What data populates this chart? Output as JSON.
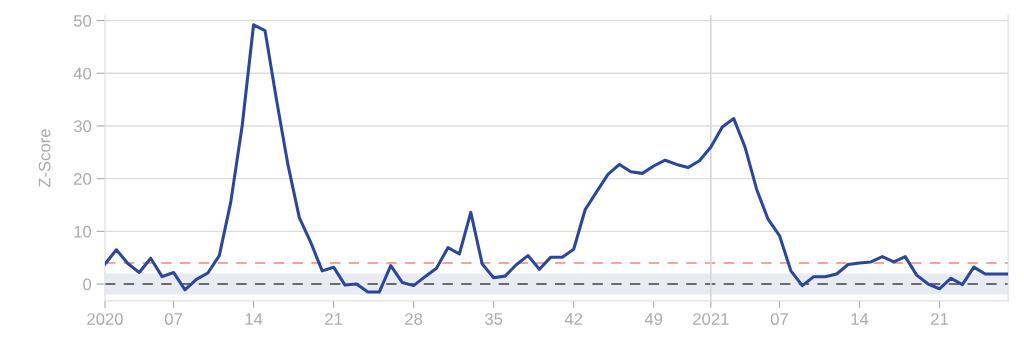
{
  "chart_data": {
    "type": "line",
    "ylabel": "Z-Score",
    "categories": [
      "2020",
      null,
      null,
      null,
      null,
      null,
      "07",
      null,
      null,
      null,
      null,
      null,
      null,
      "14",
      null,
      null,
      null,
      null,
      null,
      null,
      "21",
      null,
      null,
      null,
      null,
      null,
      null,
      "28",
      null,
      null,
      null,
      null,
      null,
      null,
      "35",
      null,
      null,
      null,
      null,
      null,
      null,
      "42",
      null,
      null,
      null,
      null,
      null,
      null,
      "49",
      null,
      null,
      null,
      null,
      "2021",
      null,
      null,
      null,
      null,
      null,
      "07",
      null,
      null,
      null,
      null,
      null,
      null,
      "14",
      null,
      null,
      null,
      null,
      null,
      null,
      "21",
      null,
      null,
      null,
      null,
      null,
      null
    ],
    "series": [
      {
        "color": "#2a479c",
        "values": [
          3.8,
          6.5,
          3.9,
          2.2,
          4.9,
          1.4,
          2.2,
          -1.1,
          0.9,
          2.1,
          5.4,
          15.5,
          30,
          49.2,
          48.1,
          35,
          22.7,
          12.6,
          7.9,
          2.5,
          3.2,
          -0.2,
          0,
          -1.5,
          -1.5,
          3.5,
          0.3,
          -0.3,
          1.4,
          3.0,
          6.9,
          5.7,
          13.6,
          3.8,
          1.2,
          1.5,
          3.7,
          5.4,
          2.8,
          5.1,
          5.1,
          6.6,
          14.1,
          17.5,
          20.8,
          22.7,
          21.3,
          21.0,
          22.4,
          23.5,
          22.7,
          22.1,
          23.4,
          26.0,
          29.8,
          31.4,
          25.9,
          18.0,
          12.3,
          9.2,
          2.5,
          -0.3,
          1.4,
          1.4,
          1.9,
          3.7,
          4.0,
          4.2,
          5.2,
          4.2,
          5.2,
          1.7,
          0,
          -0.9,
          1.1,
          -0.1,
          3.2,
          1.9,
          1.9,
          1.9
        ]
      }
    ],
    "ylim": [
      -3.2,
      51
    ],
    "yticks": [
      0,
      10,
      20,
      30,
      40,
      50
    ],
    "grid": "y",
    "line_style": "solid",
    "marker": "none",
    "ref_lines": [
      {
        "axis": "y",
        "value": 4,
        "color": "#f4a49a",
        "line_style": "dashed"
      },
      {
        "axis": "y",
        "value": 0,
        "color": "#6b6b6b",
        "line_style": "dashed"
      },
      {
        "axis": "x",
        "value": "2021",
        "color": "#d9d9d9",
        "line_style": "solid"
      }
    ],
    "bands": [
      {
        "axis": "y",
        "from": -2,
        "to": 2,
        "color": "#e8ecf2"
      }
    ]
  }
}
